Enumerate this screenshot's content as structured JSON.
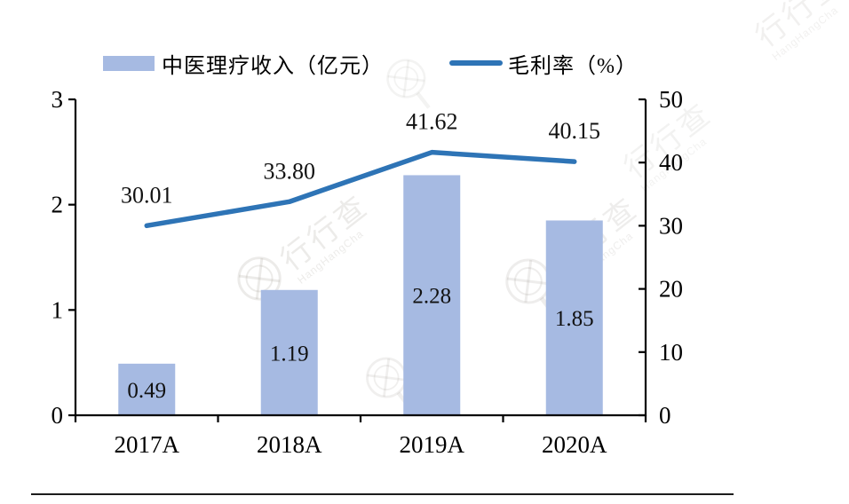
{
  "legend": {
    "bar_label": "中医理疗收入（亿元）",
    "line_label": "毛利率（%）"
  },
  "chart_data": {
    "type": "bar+line",
    "categories": [
      "2017A",
      "2018A",
      "2019A",
      "2020A"
    ],
    "series": [
      {
        "name": "中医理疗收入（亿元）",
        "type": "bar",
        "axis": "left",
        "values": [
          0.49,
          1.19,
          2.28,
          1.85
        ],
        "labels": [
          "0.49",
          "1.19",
          "2.28",
          "1.85"
        ],
        "color": "#a6bae2"
      },
      {
        "name": "毛利率（%）",
        "type": "line",
        "axis": "right",
        "values": [
          30.01,
          33.8,
          41.62,
          40.15
        ],
        "labels": [
          "30.01",
          "33.80",
          "41.62",
          "40.15"
        ],
        "color": "#2e74b6"
      }
    ],
    "left_axis": {
      "min": 0,
      "max": 3,
      "ticks": [
        0,
        1,
        2,
        3
      ]
    },
    "right_axis": {
      "min": 0,
      "max": 50,
      "ticks": [
        0,
        10,
        20,
        30,
        40,
        50
      ]
    },
    "grid": false,
    "legend_position": "top"
  },
  "watermark": {
    "text": "行行查",
    "subtext": "HangHangCha"
  },
  "colors": {
    "bar": "#a6bae2",
    "line": "#2e74b6",
    "axis": "#000000",
    "text": "#000000"
  }
}
